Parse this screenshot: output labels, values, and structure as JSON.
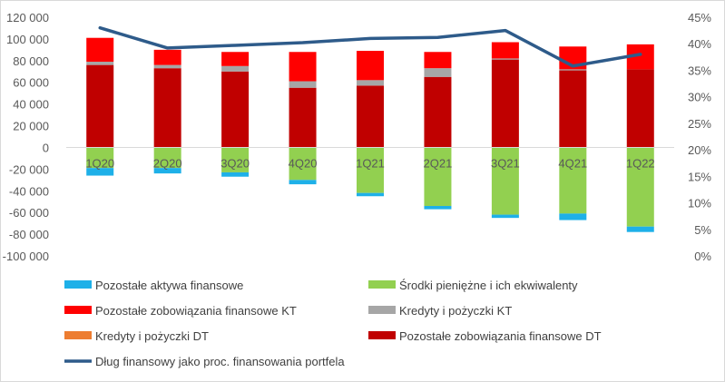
{
  "chart_data": {
    "type": "bar",
    "stacked": true,
    "categories": [
      "1Q20",
      "2Q20",
      "3Q20",
      "4Q20",
      "1Q21",
      "2Q21",
      "3Q21",
      "4Q21",
      "1Q22"
    ],
    "y_left": {
      "min": -100000,
      "max": 120000,
      "step": 20000,
      "tick_labels": [
        "-100 000",
        "-80 000",
        "-60 000",
        "-40 000",
        "-20 000",
        "0",
        "20 000",
        "40 000",
        "60 000",
        "80 000",
        "100 000",
        "120 000"
      ]
    },
    "y_right": {
      "min": 0,
      "max": 45,
      "step": 5,
      "tick_labels": [
        "0%",
        "5%",
        "10%",
        "15%",
        "20%",
        "25%",
        "30%",
        "35%",
        "40%",
        "45%"
      ]
    },
    "series": [
      {
        "name": "Pozostałe aktywa finansowe",
        "color": "#1eb0e8",
        "values": [
          -7000,
          -5000,
          -4000,
          -4000,
          -3000,
          -3000,
          -3000,
          -6000,
          -5000
        ]
      },
      {
        "name": "Środki pieniężne i ich ekwiwalenty",
        "color": "#92d050",
        "values": [
          -19000,
          -19000,
          -23000,
          -30000,
          -42000,
          -54000,
          -62000,
          -61000,
          -73000
        ]
      },
      {
        "name": "Pozostałe zobowiązania finansowe KT",
        "color": "#ff0000",
        "values": [
          22000,
          14000,
          13000,
          27000,
          27000,
          15000,
          15000,
          21000,
          23000
        ]
      },
      {
        "name": "Kredyty i pożyczki KT",
        "color": "#a6a6a6",
        "values": [
          3000,
          3000,
          5000,
          6000,
          5000,
          8000,
          1000,
          1000,
          0
        ]
      },
      {
        "name": "Kredyty i pożyczki DT",
        "color": "#ed7d31",
        "values": [
          0,
          0,
          0,
          0,
          0,
          0,
          0,
          0,
          0
        ]
      },
      {
        "name": "Pozostałe zobowiązania finansowe DT",
        "color": "#c00000",
        "values": [
          76000,
          73000,
          70000,
          55000,
          57000,
          65000,
          81000,
          71000,
          72000
        ]
      },
      {
        "name": "Dług finansowy jako proc. finansowania portfela",
        "color": "#2e5b8a",
        "type": "line",
        "axis": "right",
        "values": [
          43.0,
          39.2,
          39.7,
          40.2,
          41.0,
          41.2,
          42.5,
          35.8,
          38.0
        ]
      }
    ]
  },
  "legend": {
    "items": [
      "Pozostałe aktywa finansowe",
      "Środki pieniężne i ich ekwiwalenty",
      "Pozostałe zobowiązania finansowe KT",
      "Kredyty i pożyczki KT",
      "Kredyty i pożyczki DT",
      "Pozostałe zobowiązania finansowe DT",
      "Dług finansowy jako proc. finansowania portfela"
    ]
  }
}
